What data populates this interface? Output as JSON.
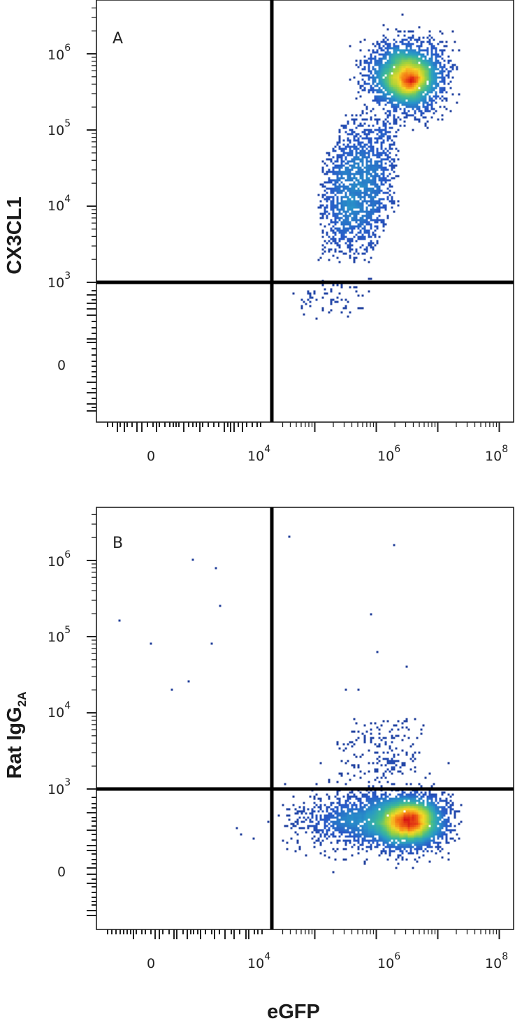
{
  "figure": {
    "xlabel": "eGFP"
  },
  "chart_data": [
    {
      "type": "scatter",
      "panel_label": "A",
      "xlabel": "eGFP",
      "ylabel": "CX3CL1",
      "x_scale": "biexponential",
      "y_scale": "biexponential",
      "x_ticks": [
        {
          "value": "0",
          "base": "0",
          "exp": ""
        },
        {
          "value": "10^4",
          "base": "10",
          "exp": "4"
        },
        {
          "value": "10^6",
          "base": "10",
          "exp": "6"
        },
        {
          "value": "10^8",
          "base": "10",
          "exp": "8"
        }
      ],
      "y_ticks": [
        {
          "value": "0",
          "base": "0",
          "exp": ""
        },
        {
          "value": "10^3",
          "base": "10",
          "exp": "3"
        },
        {
          "value": "10^4",
          "base": "10",
          "exp": "4"
        },
        {
          "value": "10^5",
          "base": "10",
          "exp": "5"
        },
        {
          "value": "10^6",
          "base": "10",
          "exp": "6"
        }
      ],
      "quadrant_gate": {
        "x": 20000,
        "y": 1000
      },
      "populations": [
        {
          "name": "main",
          "x_log10": 6.5,
          "y_log10": 5.7,
          "sx": 0.3,
          "sy": 0.22,
          "count": 2600
        },
        {
          "name": "tail",
          "x_log10_from": 5.0,
          "x_log10_to": 6.4,
          "y_log10_from": 3.2,
          "y_log10_to": 5.3,
          "count": 1700
        },
        {
          "name": "sparse",
          "x_log10_from": 4.5,
          "x_log10_to": 6.0,
          "y_log10_from": 1.5,
          "y_log10_to": 3.2,
          "count": 70
        }
      ],
      "grid": false,
      "legend": "none"
    },
    {
      "type": "scatter",
      "panel_label": "B",
      "xlabel": "eGFP",
      "ylabel": "Rat IgG",
      "ylabel_subscript": "2A",
      "x_scale": "biexponential",
      "y_scale": "biexponential",
      "x_ticks": [
        {
          "value": "0",
          "base": "0",
          "exp": ""
        },
        {
          "value": "10^4",
          "base": "10",
          "exp": "4"
        },
        {
          "value": "10^6",
          "base": "10",
          "exp": "6"
        },
        {
          "value": "10^8",
          "base": "10",
          "exp": "8"
        }
      ],
      "y_ticks": [
        {
          "value": "0",
          "base": "0",
          "exp": ""
        },
        {
          "value": "10^3",
          "base": "10",
          "exp": "3"
        },
        {
          "value": "10^4",
          "base": "10",
          "exp": "4"
        },
        {
          "value": "10^5",
          "base": "10",
          "exp": "5"
        },
        {
          "value": "10^6",
          "base": "10",
          "exp": "6"
        }
      ],
      "quadrant_gate": {
        "x": 20000,
        "y": 1000
      },
      "populations": [
        {
          "name": "main",
          "x_log10": 6.55,
          "y_log10": 1.85,
          "sx": 0.3,
          "sy": 0.45,
          "count": 2800
        },
        {
          "name": "spread",
          "x_log10": 5.9,
          "y_log10": 1.9,
          "sx": 0.55,
          "sy": 0.55,
          "count": 1500
        },
        {
          "name": "above_gate",
          "x_log10_from": 5.3,
          "x_log10_to": 6.8,
          "y_log10_from": 3.0,
          "y_log10_to": 4.0,
          "count": 170
        },
        {
          "name": "outliers",
          "points_log10": [
            [
              0.8,
              5.2
            ],
            [
              1.5,
              4.9
            ],
            [
              2.0,
              4.3
            ],
            [
              2.4,
              4.4
            ],
            [
              2.5,
              6.0
            ],
            [
              3.0,
              5.9
            ],
            [
              3.1,
              5.4
            ],
            [
              2.9,
              4.9
            ],
            [
              3.5,
              1.6
            ],
            [
              3.6,
              1.4
            ],
            [
              4.6,
              6.3
            ],
            [
              5.9,
              5.3
            ],
            [
              6.0,
              4.8
            ],
            [
              6.3,
              6.2
            ],
            [
              6.5,
              4.6
            ],
            [
              5.7,
              4.3
            ],
            [
              5.5,
              4.3
            ],
            [
              3.9,
              1.2
            ]
          ]
        }
      ],
      "grid": false,
      "legend": "none"
    }
  ]
}
